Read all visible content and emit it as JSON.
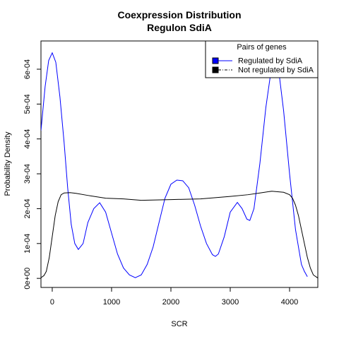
{
  "chart_data": {
    "type": "line",
    "title": [
      "Coexpression Distribution",
      "Regulon SdiA"
    ],
    "x_label": "SCR",
    "y_label": "Probability Density",
    "legend_title": "Pairs of genes",
    "legend_position": "top-right",
    "xlim": [
      -190,
      4476
    ],
    "ylim": [
      -2.6e-05,
      0.000681
    ],
    "xticks": [
      0,
      1000,
      2000,
      3000,
      4000
    ],
    "yticks": [
      {
        "value": 0,
        "label": "0e+00"
      },
      {
        "value": 0.0001,
        "label": "1e-04"
      },
      {
        "value": 0.0002,
        "label": "2e-04"
      },
      {
        "value": 0.0003,
        "label": "3e-04"
      },
      {
        "value": 0.0004,
        "label": "4e-04"
      },
      {
        "value": 0.0005,
        "label": "5e-04"
      },
      {
        "value": 0.0006,
        "label": "6e-04"
      }
    ],
    "series": [
      {
        "name": "Regulated by  SdiA",
        "color": "#0000ff",
        "x": [
          -190,
          -120,
          -60,
          0,
          60,
          130,
          200,
          260,
          320,
          380,
          440,
          520,
          600,
          700,
          800,
          900,
          1000,
          1100,
          1200,
          1300,
          1400,
          1500,
          1600,
          1700,
          1800,
          1900,
          2000,
          2100,
          2200,
          2300,
          2400,
          2500,
          2600,
          2700,
          2750,
          2800,
          2900,
          3000,
          3120,
          3200,
          3280,
          3330,
          3400,
          3500,
          3600,
          3700,
          3750,
          3800,
          3900,
          4000,
          4100,
          4200,
          4250,
          4300
        ],
        "values": [
          0.000424,
          0.00055,
          0.000625,
          0.000647,
          0.00062,
          0.00052,
          0.00039,
          0.00026,
          0.000155,
          0.0001,
          8.3e-05,
          0.0001,
          0.00016,
          0.0002,
          0.000217,
          0.00019,
          0.00013,
          7e-05,
          3e-05,
          1e-05,
          2e-06,
          1e-05,
          4e-05,
          9e-05,
          0.00016,
          0.00023,
          0.00027,
          0.000282,
          0.00028,
          0.00026,
          0.00021,
          0.00015,
          0.0001,
          6.8e-05,
          6.3e-05,
          7e-05,
          0.00012,
          0.00019,
          0.000218,
          0.0002,
          0.00017,
          0.000166,
          0.0002,
          0.00033,
          0.00049,
          0.00061,
          0.00064,
          0.00062,
          0.00048,
          0.0003,
          0.00014,
          4e-05,
          2e-05,
          5e-06
        ]
      },
      {
        "name": "Not regulated by  SdiA",
        "color": "#000000",
        "x": [
          -190,
          -140,
          -100,
          -50,
          0,
          50,
          100,
          150,
          200,
          300,
          400,
          600,
          900,
          1200,
          1500,
          2000,
          2500,
          3000,
          3300,
          3500,
          3700,
          3900,
          4000,
          4050,
          4100,
          4150,
          4200,
          4250,
          4300,
          4350,
          4400,
          4476
        ],
        "values": [
          2e-06,
          8e-06,
          2e-05,
          6e-05,
          0.00012,
          0.00018,
          0.00022,
          0.00024,
          0.000245,
          0.000246,
          0.000244,
          0.000238,
          0.00023,
          0.000228,
          0.000224,
          0.000226,
          0.000228,
          0.000235,
          0.00024,
          0.000245,
          0.00025,
          0.000247,
          0.00024,
          0.00023,
          0.00021,
          0.00018,
          0.00014,
          0.0001,
          6e-05,
          3e-05,
          1e-05,
          1e-06
        ]
      }
    ]
  }
}
